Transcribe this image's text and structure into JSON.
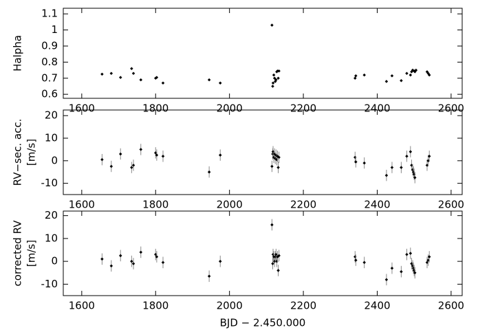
{
  "chart_data": [
    {
      "type": "scatter",
      "ylabel": [
        "Halpha"
      ],
      "color": "#000000",
      "xlim": [
        1550,
        2630
      ],
      "xticks": [
        1600,
        1800,
        2000,
        2200,
        2400,
        2600
      ],
      "ylim": [
        0.575,
        1.135
      ],
      "yticks": [
        0.6,
        0.7,
        0.8,
        0.9,
        1,
        1.1
      ],
      "x": [
        1655,
        1680,
        1705,
        1735,
        1740,
        1760,
        1800,
        1803,
        1820,
        1945,
        1975,
        2115,
        2117,
        2118,
        2120,
        2122,
        2124,
        2126,
        2128,
        2130,
        2132,
        2134,
        2340,
        2342,
        2365,
        2425,
        2440,
        2465,
        2480,
        2490,
        2493,
        2496,
        2500,
        2502,
        2505,
        2535,
        2538,
        2541
      ],
      "values": [
        0.725,
        0.73,
        0.705,
        0.76,
        0.73,
        0.69,
        0.7,
        0.705,
        0.67,
        0.69,
        0.67,
        1.03,
        0.65,
        0.67,
        0.72,
        0.7,
        0.68,
        0.69,
        0.74,
        0.745,
        0.7,
        0.745,
        0.7,
        0.715,
        0.72,
        0.68,
        0.715,
        0.685,
        0.73,
        0.72,
        0.74,
        0.75,
        0.745,
        0.74,
        0.75,
        0.74,
        0.73,
        0.72
      ]
    },
    {
      "type": "scatter",
      "ylabel": [
        "RV−sec. acc.",
        "[m/s]"
      ],
      "color": "#000000",
      "xlim": [
        1550,
        2630
      ],
      "xticks": [
        1600,
        1800,
        2000,
        2200,
        2400,
        2600
      ],
      "ylim": [
        -15,
        22.5
      ],
      "yticks": [
        -10,
        0,
        10,
        20
      ],
      "x": [
        1655,
        1680,
        1705,
        1735,
        1740,
        1760,
        1800,
        1803,
        1820,
        1945,
        1975,
        2115,
        2117,
        2118,
        2120,
        2122,
        2124,
        2126,
        2128,
        2130,
        2132,
        2134,
        2340,
        2342,
        2365,
        2425,
        2440,
        2465,
        2480,
        2490,
        2493,
        2496,
        2498,
        2500,
        2502,
        2535,
        2538,
        2541
      ],
      "values": [
        0.5,
        -2.5,
        3,
        -3,
        -2,
        5,
        3.5,
        2.5,
        2,
        -5,
        2.5,
        -2.5,
        3,
        4,
        1.5,
        3,
        1,
        2.5,
        0.5,
        2,
        -3,
        1.5,
        1.5,
        -0.5,
        -1,
        -6.5,
        -3,
        -3,
        2,
        4,
        -2,
        -4,
        -5,
        -6,
        -7.5,
        -2,
        0,
        2
      ],
      "errors": [
        2.5,
        2.5,
        2.5,
        2.5,
        2.5,
        2.5,
        2.5,
        2.5,
        2.5,
        2.5,
        2.5,
        2.5,
        2.5,
        2.5,
        2.5,
        2.5,
        2.5,
        2.5,
        2.5,
        2.5,
        2.5,
        2.5,
        2.5,
        2.5,
        2.5,
        2.5,
        2.5,
        2.5,
        2.5,
        2.5,
        2.5,
        2.5,
        2.5,
        2.5,
        2.5,
        2.5,
        2.5,
        2.5
      ]
    },
    {
      "type": "scatter",
      "ylabel": [
        "corrected RV",
        "[m/s]"
      ],
      "xlabel": "BJD  −  2.450.000",
      "color": "#000000",
      "xlim": [
        1550,
        2630
      ],
      "xticks": [
        1600,
        1800,
        2000,
        2200,
        2400,
        2600
      ],
      "ylim": [
        -15,
        22
      ],
      "yticks": [
        -10,
        0,
        10,
        20
      ],
      "x": [
        1655,
        1680,
        1705,
        1735,
        1740,
        1760,
        1800,
        1803,
        1820,
        1945,
        1975,
        2115,
        2117,
        2118,
        2120,
        2122,
        2124,
        2126,
        2128,
        2130,
        2132,
        2134,
        2340,
        2342,
        2365,
        2425,
        2440,
        2465,
        2480,
        2490,
        2493,
        2496,
        2498,
        2500,
        2502,
        2535,
        2538,
        2541
      ],
      "values": [
        1,
        -2,
        2.5,
        0,
        -1,
        4,
        3,
        2,
        -0.5,
        -6.5,
        0,
        16,
        -1,
        3,
        2,
        0,
        2,
        3,
        0,
        2,
        -4,
        2.5,
        2,
        0.5,
        -0.5,
        -8,
        -3,
        -4.5,
        3,
        3.5,
        -1,
        -2,
        -3,
        -4,
        -5,
        -0.5,
        0.5,
        2
      ],
      "errors": [
        2.5,
        2.5,
        2.5,
        2.5,
        2.5,
        2.5,
        2.5,
        2.5,
        2.5,
        2.5,
        2.5,
        2.5,
        2.5,
        2.5,
        2.5,
        2.5,
        2.5,
        2.5,
        2.5,
        2.5,
        2.5,
        2.5,
        2.5,
        2.5,
        2.5,
        2.5,
        2.5,
        2.5,
        2.5,
        2.5,
        2.5,
        2.5,
        2.5,
        2.5,
        2.5,
        2.5,
        2.5,
        2.5
      ]
    }
  ]
}
